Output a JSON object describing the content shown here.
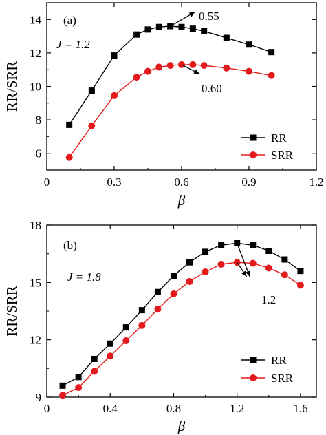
{
  "chart_data": [
    {
      "type": "line",
      "panel_label": "(a)",
      "parameter_label": "J = 1.2",
      "xlabel": "β",
      "ylabel": "RR/SRR",
      "xlim": [
        0,
        1.2
      ],
      "ylim": [
        5,
        15
      ],
      "x_ticks": [
        "0",
        "0.3",
        "0.6",
        "0.9",
        "1.2"
      ],
      "x_tick_values": [
        0,
        0.3,
        0.6,
        0.9,
        1.2
      ],
      "y_ticks": [
        "6",
        "8",
        "10",
        "12",
        "14"
      ],
      "y_tick_values": [
        6,
        8,
        10,
        12,
        14
      ],
      "legend_position": "bottom-right",
      "series": [
        {
          "name": "RR",
          "marker": "square",
          "color": "#000000",
          "x": [
            0.1,
            0.2,
            0.3,
            0.4,
            0.45,
            0.5,
            0.55,
            0.6,
            0.65,
            0.7,
            0.8,
            0.9,
            1.0
          ],
          "y": [
            7.7,
            9.75,
            11.85,
            13.1,
            13.4,
            13.55,
            13.6,
            13.55,
            13.45,
            13.3,
            12.9,
            12.5,
            12.05
          ]
        },
        {
          "name": "SRR",
          "marker": "circle",
          "color": "#e31a1c",
          "x": [
            0.1,
            0.2,
            0.3,
            0.4,
            0.45,
            0.5,
            0.55,
            0.6,
            0.65,
            0.7,
            0.8,
            0.9,
            1.0
          ],
          "y": [
            5.75,
            7.65,
            9.45,
            10.55,
            10.9,
            11.15,
            11.25,
            11.3,
            11.3,
            11.25,
            11.1,
            10.9,
            10.65
          ]
        }
      ],
      "annotations": [
        {
          "text": "0.55",
          "x_from": 0.55,
          "y_from": 13.6,
          "x_to": 0.66,
          "y_to": 14.45
        },
        {
          "text": "0.60",
          "x_from": 0.6,
          "y_from": 11.3,
          "x_to": 0.68,
          "y_to": 10.75
        }
      ]
    },
    {
      "type": "line",
      "panel_label": "(b)",
      "parameter_label": "J = 1.8",
      "xlabel": "β",
      "ylabel": "RR/SRR",
      "xlim": [
        0,
        1.7
      ],
      "ylim": [
        9,
        18
      ],
      "x_ticks": [
        "0",
        "0.4",
        "0.8",
        "1.2",
        "1.6"
      ],
      "x_tick_values": [
        0,
        0.4,
        0.8,
        1.2,
        1.6
      ],
      "y_ticks": [
        "9",
        "12",
        "15",
        "18"
      ],
      "y_tick_values": [
        9,
        12,
        15,
        18
      ],
      "legend_position": "bottom-right",
      "series": [
        {
          "name": "RR",
          "marker": "square",
          "color": "#000000",
          "x": [
            0.1,
            0.2,
            0.3,
            0.4,
            0.5,
            0.6,
            0.7,
            0.8,
            0.9,
            1.0,
            1.1,
            1.2,
            1.3,
            1.4,
            1.5,
            1.6
          ],
          "y": [
            9.6,
            10.05,
            11.0,
            11.8,
            12.65,
            13.55,
            14.5,
            15.35,
            16.05,
            16.6,
            16.95,
            17.05,
            16.95,
            16.65,
            16.2,
            15.6
          ]
        },
        {
          "name": "SRR",
          "marker": "circle",
          "color": "#e31a1c",
          "x": [
            0.1,
            0.2,
            0.3,
            0.4,
            0.5,
            0.6,
            0.7,
            0.8,
            0.9,
            1.0,
            1.1,
            1.2,
            1.3,
            1.4,
            1.5,
            1.6
          ],
          "y": [
            9.1,
            9.5,
            10.35,
            11.15,
            11.95,
            12.75,
            13.6,
            14.4,
            15.05,
            15.55,
            15.95,
            16.05,
            16.0,
            15.75,
            15.4,
            14.85
          ]
        }
      ],
      "annotations": [
        {
          "text": "1.2",
          "x_from": 1.2,
          "y_from": 17.05,
          "x_to": 1.28,
          "y_to": 15.3
        },
        {
          "text": "",
          "x_from": 1.2,
          "y_from": 16.05,
          "x_to": 1.26,
          "y_to": 15.3
        }
      ]
    }
  ]
}
